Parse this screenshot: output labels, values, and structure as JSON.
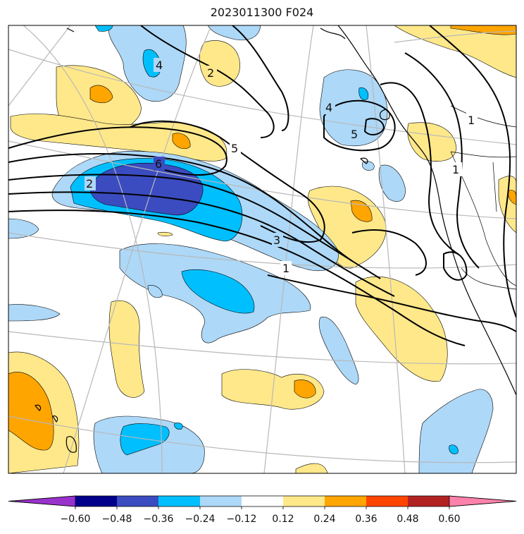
{
  "title": "2023011300 F024",
  "colorbar": {
    "tick_labels": [
      "−0.60",
      "−0.48",
      "−0.36",
      "−0.24",
      "−0.12",
      "0.12",
      "0.24",
      "0.36",
      "0.48",
      "0.60"
    ],
    "colors": [
      "#9932cc",
      "#00008b",
      "#3b4cc0",
      "#00bfff",
      "#add8f8",
      "#ffffff",
      "#ffe88a",
      "#ffa500",
      "#ff4500",
      "#b22222",
      "#ff82ab"
    ],
    "extend": "both"
  },
  "contour_labels": [
    "4",
    "2",
    "4",
    "5",
    "5",
    "6",
    "2",
    "3",
    "1",
    "1",
    "1"
  ],
  "map": {
    "projection": "lambert-conformal",
    "region": "Northeast Pacific / North American west coast",
    "features": [
      "coastlines",
      "state-borders",
      "graticule"
    ]
  }
}
